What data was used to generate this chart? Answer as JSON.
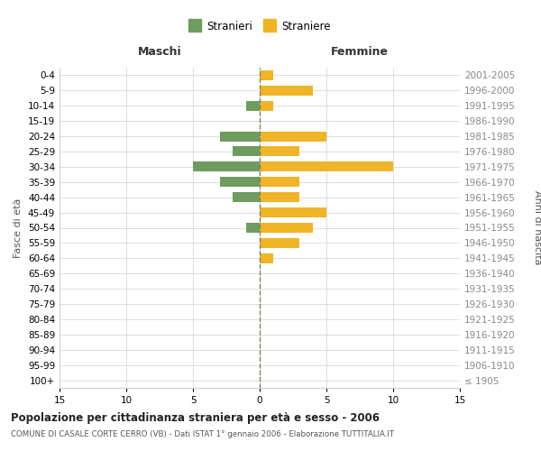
{
  "age_groups": [
    "100+",
    "95-99",
    "90-94",
    "85-89",
    "80-84",
    "75-79",
    "70-74",
    "65-69",
    "60-64",
    "55-59",
    "50-54",
    "45-49",
    "40-44",
    "35-39",
    "30-34",
    "25-29",
    "20-24",
    "15-19",
    "10-14",
    "5-9",
    "0-4"
  ],
  "birth_years": [
    "≤ 1905",
    "1906-1910",
    "1911-1915",
    "1916-1920",
    "1921-1925",
    "1926-1930",
    "1931-1935",
    "1936-1940",
    "1941-1945",
    "1946-1950",
    "1951-1955",
    "1956-1960",
    "1961-1965",
    "1966-1970",
    "1971-1975",
    "1976-1980",
    "1981-1985",
    "1986-1990",
    "1991-1995",
    "1996-2000",
    "2001-2005"
  ],
  "maschi": [
    0,
    0,
    0,
    0,
    0,
    0,
    0,
    0,
    0,
    0,
    1,
    0,
    2,
    3,
    5,
    2,
    3,
    0,
    1,
    0,
    0
  ],
  "femmine": [
    0,
    0,
    0,
    0,
    0,
    0,
    0,
    0,
    1,
    3,
    4,
    5,
    3,
    3,
    10,
    3,
    5,
    0,
    1,
    4,
    1
  ],
  "male_color": "#6e9b5e",
  "female_color": "#f0b429",
  "title": "Popolazione per cittadinanza straniera per età e sesso - 2006",
  "subtitle": "COMUNE DI CASALE CORTE CERRO (VB) - Dati ISTAT 1° gennaio 2006 - Elaborazione TUTTITALIA.IT",
  "xlabel_left": "Maschi",
  "xlabel_right": "Femmine",
  "ylabel_left": "Fasce di età",
  "ylabel_right": "Anni di nascita",
  "legend_male": "Stranieri",
  "legend_female": "Straniere",
  "xlim": 15,
  "background_color": "#ffffff",
  "grid_color": "#d0d0d0"
}
